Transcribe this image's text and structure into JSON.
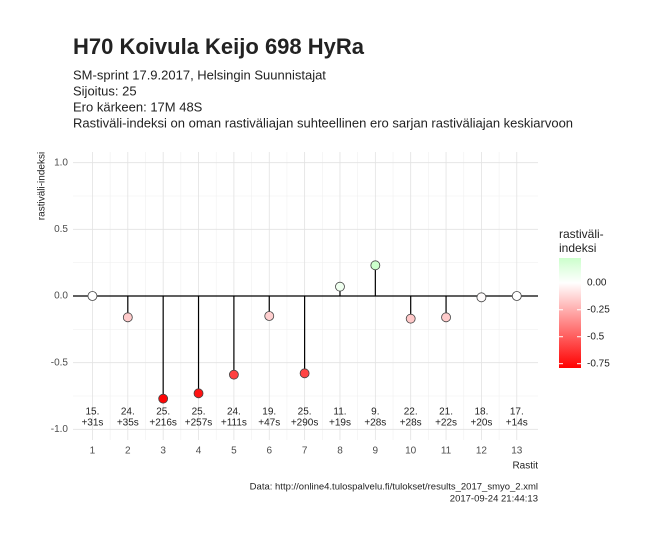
{
  "chart_data": {
    "type": "lollipop",
    "title": "H70 Koivula Keijo 698 HyRa",
    "subtitle": [
      "SM-sprint 17.9.2017, Helsingin Suunnistajat",
      "Sijoitus: 25",
      "Ero kärkeen: 17M 48S",
      "Rastiväli-indeksi on oman rastiväliajan suhteellinen ero sarjan rastiväliajan keskiarvoon"
    ],
    "y_label": "rastiväli-indeksi",
    "x_label": "Rastit",
    "caption": [
      "Data: http://online4.tulospalvelu.fi/tulokset/results_2017_smyo_2.xml",
      "2017-09-24 21:44:13"
    ],
    "x": [
      1,
      2,
      3,
      4,
      5,
      6,
      7,
      8,
      9,
      10,
      11,
      12,
      13
    ],
    "values": [
      0.0,
      -0.16,
      -0.77,
      -0.73,
      -0.59,
      -0.15,
      -0.58,
      0.07,
      0.23,
      -0.17,
      -0.16,
      -0.01,
      0.0
    ],
    "point_labels": [
      [
        "15.",
        "+31s"
      ],
      [
        "24.",
        "+35s"
      ],
      [
        "25.",
        "+216s"
      ],
      [
        "25.",
        "+257s"
      ],
      [
        "24.",
        "+111s"
      ],
      [
        "19.",
        "+47s"
      ],
      [
        "25.",
        "+290s"
      ],
      [
        "11.",
        "+19s"
      ],
      [
        "9.",
        "+28s"
      ],
      [
        "22.",
        "+28s"
      ],
      [
        "21.",
        "+22s"
      ],
      [
        "18.",
        "+20s"
      ],
      [
        "17.",
        "+14s"
      ]
    ],
    "xlim": [
      0.45,
      13.6
    ],
    "xticks": [
      1,
      2,
      3,
      4,
      5,
      6,
      7,
      8,
      9,
      10,
      11,
      12,
      13
    ],
    "ylim": [
      -1.08,
      1.08
    ],
    "yticks": [
      {
        "value": 1.0,
        "label": "1.0"
      },
      0.5,
      {
        "value": 0.0,
        "label": "0.0"
      },
      -0.5,
      {
        "value": -1.0,
        "label": "-1.0"
      }
    ],
    "grid": true,
    "color_scale": {
      "title_lines": [
        "rastiväli-",
        "indeksi"
      ],
      "limits": [
        -0.79,
        0.23
      ],
      "low": "#ff0000",
      "mid": "#ffffff",
      "high": "#ccffcc",
      "ticks": [
        {
          "value": 0.0,
          "label": "0.00"
        },
        -0.25,
        -0.5,
        -0.75
      ]
    }
  }
}
